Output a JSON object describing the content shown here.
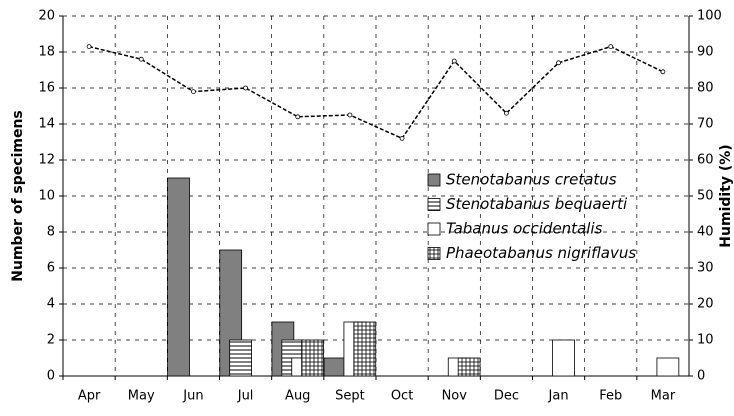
{
  "chart_data": {
    "type": "bar",
    "categories": [
      "Apr",
      "May",
      "Jun",
      "Jul",
      "Aug",
      "Sept",
      "Oct",
      "Nov",
      "Dec",
      "Jan",
      "Feb",
      "Mar"
    ],
    "series": [
      {
        "name": "Stenotabanus cretatus",
        "color": "#808080",
        "pattern": "solid",
        "values": [
          0,
          0,
          11,
          7,
          3,
          1,
          0,
          0,
          0,
          0,
          0,
          0
        ]
      },
      {
        "name": "Stenotabanus bequaerti",
        "color": "#ffffff",
        "pattern": "horizontal",
        "values": [
          0,
          0,
          0,
          2,
          2,
          0,
          0,
          0,
          0,
          0,
          0,
          0
        ]
      },
      {
        "name": "Tabanus occidentalis",
        "color": "#ffffff",
        "pattern": "none",
        "values": [
          0,
          0,
          0,
          0,
          1,
          3,
          0,
          1,
          0,
          2,
          0,
          1
        ]
      },
      {
        "name": "Phaeotabanus nigriflavus",
        "color": "#ffffff",
        "pattern": "grid",
        "values": [
          0,
          0,
          0,
          0,
          2,
          3,
          0,
          1,
          0,
          0,
          0,
          0
        ]
      },
      {
        "type": "line",
        "axis": "y2",
        "color": "#000000",
        "values": [
          91.5,
          88,
          79,
          80,
          72,
          72.5,
          66,
          87.5,
          73,
          87,
          91.5,
          84.5
        ]
      }
    ],
    "ylabel": "Number of specimens",
    "y2label": "Humidity (%)",
    "ylim": [
      0,
      20
    ],
    "yticks": [
      0,
      2,
      4,
      6,
      8,
      10,
      12,
      14,
      16,
      18,
      20
    ],
    "y2lim": [
      0,
      100
    ],
    "y2ticks": [
      0,
      10,
      20,
      30,
      40,
      50,
      60,
      70,
      80,
      90,
      100
    ],
    "grid": true,
    "legend": "center-right"
  }
}
